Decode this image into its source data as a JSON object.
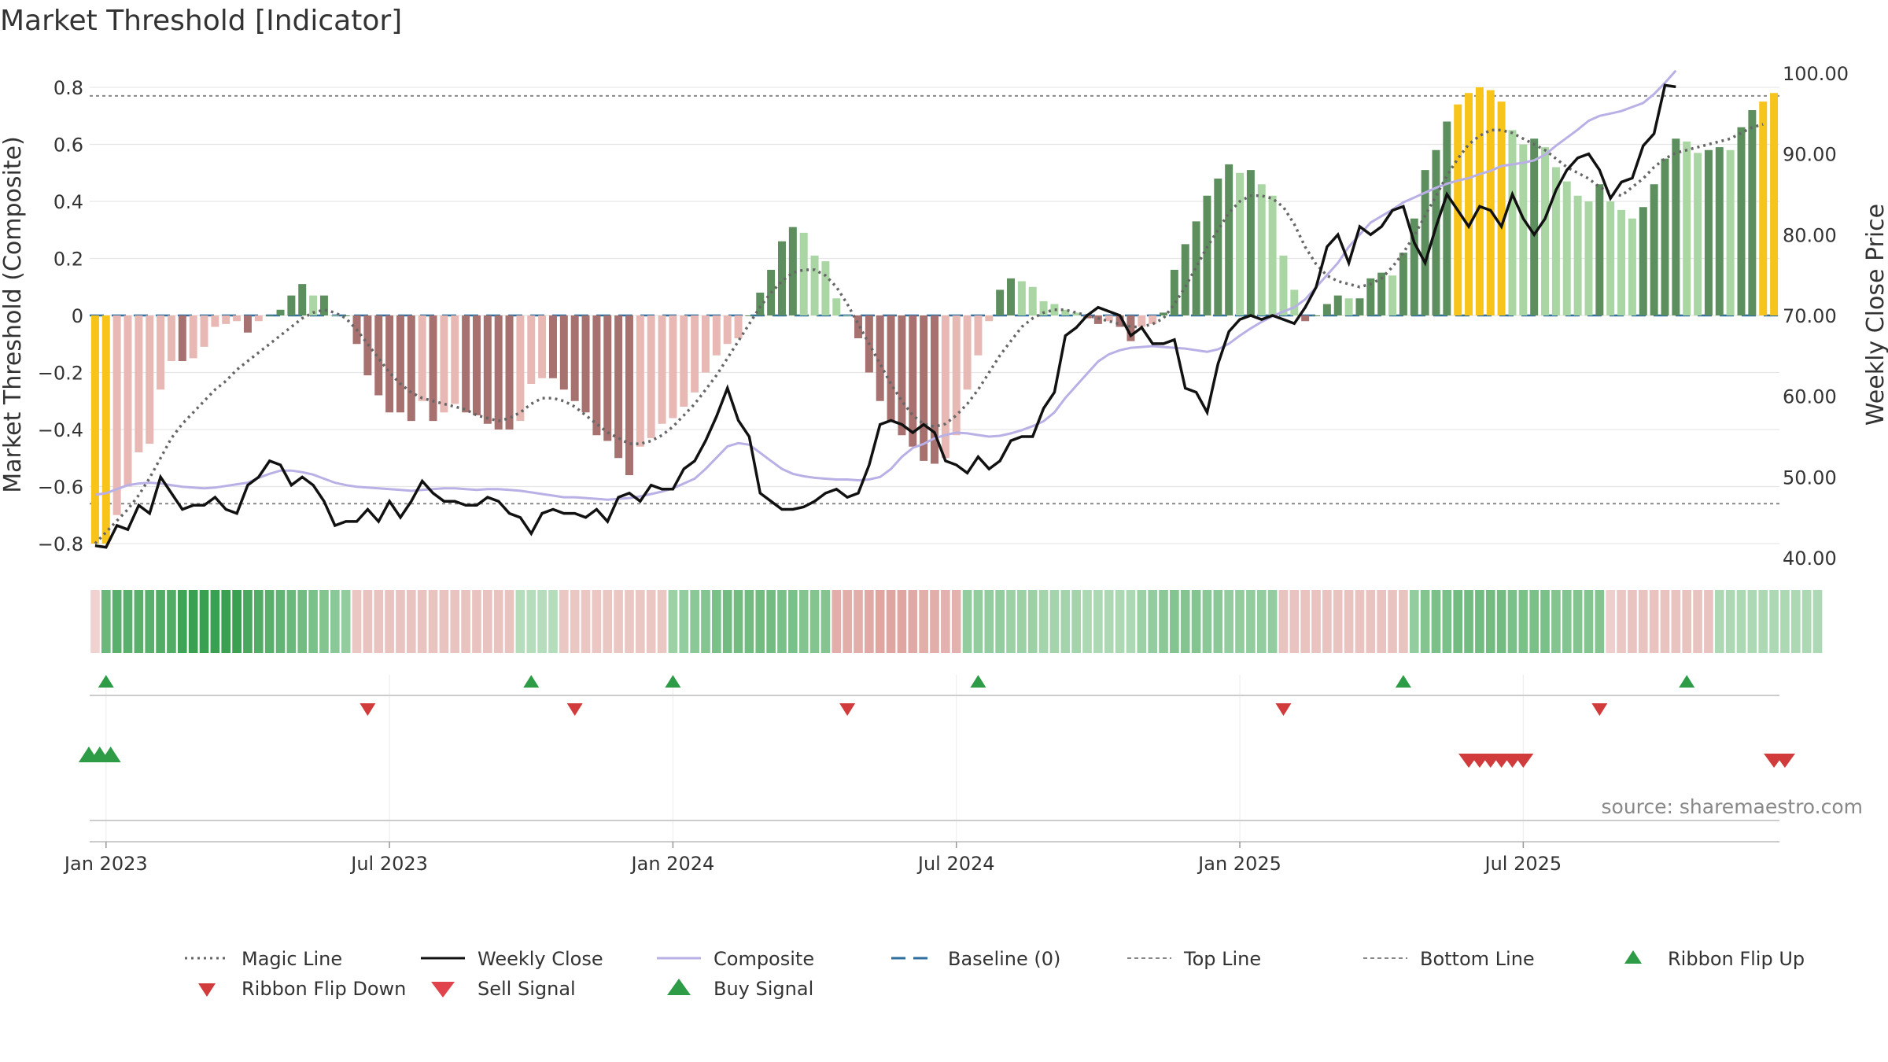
{
  "chart_data": {
    "type": "bar",
    "title": "Market Threshold [Indicator]",
    "ylabel": "Market Threshold (Composite)",
    "y2label": "Weekly Close Price",
    "ylim": [
      -0.84,
      0.83
    ],
    "y2lim": [
      40,
      100
    ],
    "y_ticks": [
      "0.8",
      "0.6",
      "0.4",
      "0.2",
      "0",
      "−0.2",
      "−0.4",
      "−0.6",
      "−0.8"
    ],
    "y2_ticks": [
      "100.00",
      "90.00",
      "80.00",
      "70.00",
      "60.00",
      "50.00",
      "40.00"
    ],
    "x_ticks": [
      "Jan 2023",
      "Jul 2023",
      "Jan 2024",
      "Jul 2024",
      "Jan 2025",
      "Jul 2025"
    ],
    "top_line": 0.77,
    "bottom_line": -0.66,
    "source": "source: sharemaestro.com",
    "colors": {
      "yellow": "#f7c41b",
      "dark_green": "#5d8f5e",
      "light_green": "#a9d6a3",
      "light_red": "#e8b9b4",
      "dark_red": "#a6716e",
      "close": "#111111",
      "composite": "#b9b0e6",
      "magic": "#666666",
      "baseline": "#2f6f9f",
      "buy": "#2e9b47",
      "sell": "#d23b3b"
    },
    "composite_bars": [
      -0.8,
      -0.8,
      -0.7,
      -0.6,
      -0.48,
      -0.45,
      -0.26,
      -0.16,
      -0.16,
      -0.15,
      -0.11,
      -0.04,
      -0.03,
      -0.02,
      -0.06,
      -0.02,
      0,
      0.02,
      0.07,
      0.11,
      0.07,
      0.07,
      0,
      0,
      -0.1,
      -0.21,
      -0.28,
      -0.34,
      -0.34,
      -0.37,
      -0.3,
      -0.37,
      -0.34,
      -0.31,
      -0.34,
      -0.35,
      -0.38,
      -0.4,
      -0.4,
      -0.37,
      -0.24,
      -0.22,
      -0.22,
      -0.26,
      -0.3,
      -0.34,
      -0.42,
      -0.44,
      -0.5,
      -0.56,
      -0.46,
      -0.43,
      -0.38,
      -0.36,
      -0.32,
      -0.27,
      -0.2,
      -0.14,
      -0.1,
      -0.08,
      0,
      0.08,
      0.16,
      0.26,
      0.31,
      0.29,
      0.21,
      0.19,
      0.06,
      0,
      -0.08,
      -0.2,
      -0.3,
      -0.37,
      -0.42,
      -0.46,
      -0.51,
      -0.52,
      -0.5,
      -0.42,
      -0.26,
      -0.14,
      -0.02,
      0.09,
      0.13,
      0.12,
      0.1,
      0.05,
      0.04,
      0.02,
      0.01,
      -0.01,
      -0.03,
      -0.02,
      -0.04,
      -0.09,
      -0.04,
      -0.03,
      0.01,
      0.16,
      0.25,
      0.33,
      0.42,
      0.48,
      0.53,
      0.5,
      0.51,
      0.46,
      0.42,
      0.21,
      0.09,
      -0.02,
      0,
      0.04,
      0.07,
      0.06,
      0.06,
      0.13,
      0.15,
      0.14,
      0.22,
      0.34,
      0.51,
      0.58,
      0.68,
      0.74,
      0.78,
      0.8,
      0.79,
      0.75,
      0.65,
      0.6,
      0.62,
      0.59,
      0.52,
      0.47,
      0.42,
      0.4,
      0.46,
      0.4,
      0.37,
      0.34,
      0.38,
      0.46,
      0.55,
      0.62,
      0.61,
      0.57,
      0.58,
      0.59,
      0.58,
      0.66,
      0.72,
      0.75,
      0.78
    ],
    "weekly_close": [
      41.5,
      41.3,
      44,
      43.5,
      46.5,
      45.5,
      50,
      48,
      46,
      46.5,
      46.5,
      47.5,
      46,
      45.5,
      49,
      50,
      52,
      51.5,
      49,
      50,
      49,
      47,
      44,
      44.5,
      44.5,
      46,
      44.5,
      47,
      45,
      47,
      49.5,
      48,
      47,
      47,
      46.5,
      46.5,
      47.5,
      47,
      45.5,
      45,
      43,
      45.5,
      46,
      45.5,
      45.5,
      45,
      46,
      44.5,
      47.5,
      48,
      47,
      49,
      48.5,
      48.5,
      51,
      52,
      54.5,
      57.5,
      61,
      57,
      55,
      48,
      47,
      46,
      46,
      46.3,
      47,
      48,
      48.5,
      47.5,
      48,
      51.5,
      56.5,
      57,
      56.5,
      55.5,
      56.5,
      55.5,
      52,
      51.5,
      50.5,
      52.5,
      51,
      52,
      54.5,
      55,
      55,
      58.5,
      60.5,
      67.5,
      68.5,
      70,
      71,
      70.5,
      70,
      67.5,
      68.5,
      66.5,
      66.5,
      67,
      61,
      60.5,
      58,
      64,
      68,
      69.5,
      70,
      69.5,
      70,
      69.5,
      69,
      71,
      73.5,
      78.5,
      80,
      76.5,
      81,
      80,
      81,
      83,
      83.5,
      79,
      76.5,
      81,
      85,
      83,
      81,
      83.5,
      83,
      81,
      85,
      82,
      80,
      82,
      85.5,
      88,
      89.5,
      90,
      88,
      84.5,
      86.5,
      87,
      91,
      92.5,
      98.5,
      98.3
    ],
    "composite_line": [
      47.8,
      48,
      48.5,
      49,
      49.2,
      49.3,
      49.2,
      49,
      48.8,
      48.7,
      48.6,
      48.7,
      48.9,
      49.1,
      49.3,
      49.9,
      50.4,
      50.8,
      50.8,
      50.6,
      50.3,
      49.8,
      49.3,
      49,
      48.8,
      48.7,
      48.6,
      48.5,
      48.4,
      48.3,
      48.4,
      48.5,
      48.6,
      48.6,
      48.5,
      48.4,
      48.5,
      48.5,
      48.4,
      48.3,
      48.1,
      47.9,
      47.7,
      47.5,
      47.5,
      47.4,
      47.3,
      47.2,
      47.3,
      47.4,
      47.6,
      47.9,
      48.2,
      48.6,
      49.2,
      49.8,
      51,
      52.4,
      53.8,
      54.2,
      54,
      53,
      52,
      51,
      50.4,
      50.1,
      49.9,
      49.8,
      49.7,
      49.7,
      49.6,
      49.7,
      50,
      51,
      52.5,
      53.6,
      54.1,
      54.8,
      55.2,
      55.5,
      55.4,
      55.2,
      55,
      55.1,
      55.4,
      55.8,
      56.3,
      56.9,
      58,
      59.8,
      61.3,
      62.8,
      64.3,
      65.2,
      65.7,
      66,
      66.1,
      66.2,
      66.1,
      66,
      65.9,
      65.7,
      65.5,
      65.8,
      66.5,
      67.5,
      68.4,
      69.2,
      69.9,
      70.5,
      71,
      72,
      73.5,
      75,
      76.5,
      78.5,
      80,
      81.5,
      82.3,
      83.1,
      84,
      84.6,
      85.2,
      85.8,
      86.3,
      86.7,
      87,
      87.5,
      87.9,
      88.5,
      88.7,
      88.9,
      89.2,
      89.9,
      91,
      92,
      93,
      94.1,
      94.7,
      95,
      95.3,
      95.8,
      96.3,
      97.4,
      98.8,
      100.3
    ],
    "magic_line": [
      -0.8,
      -0.76,
      -0.72,
      -0.68,
      -0.63,
      -0.57,
      -0.5,
      -0.43,
      -0.38,
      -0.34,
      -0.3,
      -0.26,
      -0.23,
      -0.19,
      -0.16,
      -0.13,
      -0.1,
      -0.07,
      -0.04,
      -0.01,
      0.01,
      0.02,
      0.01,
      -0.01,
      -0.05,
      -0.1,
      -0.15,
      -0.2,
      -0.24,
      -0.27,
      -0.29,
      -0.3,
      -0.31,
      -0.32,
      -0.33,
      -0.35,
      -0.36,
      -0.37,
      -0.36,
      -0.34,
      -0.31,
      -0.29,
      -0.29,
      -0.3,
      -0.32,
      -0.35,
      -0.38,
      -0.41,
      -0.43,
      -0.45,
      -0.45,
      -0.44,
      -0.42,
      -0.39,
      -0.35,
      -0.31,
      -0.26,
      -0.21,
      -0.15,
      -0.09,
      -0.03,
      0.03,
      0.08,
      0.12,
      0.15,
      0.16,
      0.16,
      0.14,
      0.1,
      0.04,
      -0.03,
      -0.1,
      -0.17,
      -0.24,
      -0.3,
      -0.35,
      -0.38,
      -0.39,
      -0.38,
      -0.35,
      -0.31,
      -0.26,
      -0.2,
      -0.14,
      -0.09,
      -0.04,
      -0.01,
      0.01,
      0.02,
      0.02,
      0.01,
      0,
      -0.01,
      -0.02,
      -0.03,
      -0.04,
      -0.04,
      -0.03,
      -0.01,
      0.04,
      0.1,
      0.17,
      0.24,
      0.3,
      0.36,
      0.4,
      0.42,
      0.42,
      0.41,
      0.38,
      0.32,
      0.24,
      0.18,
      0.14,
      0.12,
      0.11,
      0.1,
      0.11,
      0.13,
      0.17,
      0.22,
      0.28,
      0.35,
      0.42,
      0.49,
      0.55,
      0.6,
      0.63,
      0.65,
      0.65,
      0.64,
      0.62,
      0.6,
      0.58,
      0.55,
      0.52,
      0.5,
      0.48,
      0.45,
      0.43,
      0.42,
      0.45,
      0.48,
      0.52,
      0.55,
      0.57,
      0.58,
      0.59,
      0.6,
      0.61,
      0.62,
      0.64,
      0.66,
      0.67
    ],
    "ribbon": [
      -0.15,
      0.7,
      0.8,
      0.8,
      0.8,
      0.8,
      0.85,
      0.85,
      0.95,
      1,
      1,
      1,
      1,
      1,
      0.9,
      0.85,
      0.8,
      0.75,
      0.7,
      0.65,
      0.6,
      0.55,
      0.5,
      0.45,
      -0.3,
      -0.35,
      -0.35,
      -0.35,
      -0.35,
      -0.35,
      -0.35,
      -0.35,
      -0.35,
      -0.35,
      -0.35,
      -0.35,
      -0.35,
      -0.35,
      -0.35,
      0.25,
      0.25,
      0.25,
      0.25,
      -0.3,
      -0.3,
      -0.3,
      -0.3,
      -0.3,
      -0.3,
      -0.3,
      -0.3,
      -0.3,
      -0.3,
      0.4,
      0.45,
      0.5,
      0.55,
      0.6,
      0.65,
      0.65,
      0.65,
      0.65,
      0.65,
      0.6,
      0.6,
      0.55,
      0.55,
      0.55,
      -0.6,
      -0.6,
      -0.6,
      -0.65,
      -0.7,
      -0.7,
      -0.7,
      -0.65,
      -0.6,
      -0.6,
      -0.55,
      -0.55,
      0.45,
      0.45,
      0.45,
      0.45,
      0.4,
      0.4,
      0.4,
      0.35,
      0.35,
      0.35,
      0.35,
      0.3,
      0.3,
      0.3,
      0.3,
      0.3,
      0.4,
      0.45,
      0.5,
      0.55,
      0.55,
      0.55,
      0.5,
      0.5,
      0.45,
      0.45,
      0.45,
      0.45,
      0.45,
      -0.35,
      -0.35,
      -0.35,
      -0.35,
      -0.35,
      -0.35,
      -0.35,
      -0.35,
      -0.35,
      -0.35,
      -0.35,
      -0.35,
      0.45,
      0.55,
      0.6,
      0.6,
      0.65,
      0.65,
      0.65,
      0.65,
      0.65,
      0.6,
      0.6,
      0.6,
      0.6,
      0.55,
      0.55,
      0.55,
      0.55,
      0.55,
      -0.2,
      -0.3,
      -0.35,
      -0.35,
      -0.35,
      -0.35,
      -0.35,
      -0.35,
      -0.35,
      -0.35,
      0.3,
      0.3,
      0.3,
      0.3,
      0.3,
      0.3,
      0.3,
      0.3,
      0.3,
      0.3
    ],
    "ribbon_flip_up_idx": [
      1,
      40,
      53,
      81,
      120,
      146
    ],
    "ribbon_flip_down_idx": [
      25,
      44,
      69,
      109,
      138
    ],
    "buy_signal_idx": [
      0,
      1,
      2
    ],
    "sell_signal_idx": [
      126,
      127,
      128,
      129,
      130,
      131,
      154,
      155
    ],
    "legend": [
      {
        "label": "Magic Line",
        "style": "dotted-line",
        "color": "#666666"
      },
      {
        "label": "Weekly Close",
        "style": "solid-line",
        "color": "#111111"
      },
      {
        "label": "Composite",
        "style": "solid-line",
        "color": "#b9b0e6"
      },
      {
        "label": "Baseline (0)",
        "style": "dashed-line",
        "color": "#2f6f9f"
      },
      {
        "label": "Top Line",
        "style": "dashed-thin",
        "color": "#888888"
      },
      {
        "label": "Bottom Line",
        "style": "dashed-thin",
        "color": "#888888"
      },
      {
        "label": "Ribbon Flip Up",
        "style": "triangle-up-small",
        "color": "#2e9b47"
      },
      {
        "label": "Ribbon Flip Down",
        "style": "triangle-down-small",
        "color": "#d23b3b"
      },
      {
        "label": "Sell Signal",
        "style": "triangle-down",
        "color": "#e0434b"
      },
      {
        "label": "Buy Signal",
        "style": "triangle-up",
        "color": "#2e9b47"
      }
    ]
  }
}
